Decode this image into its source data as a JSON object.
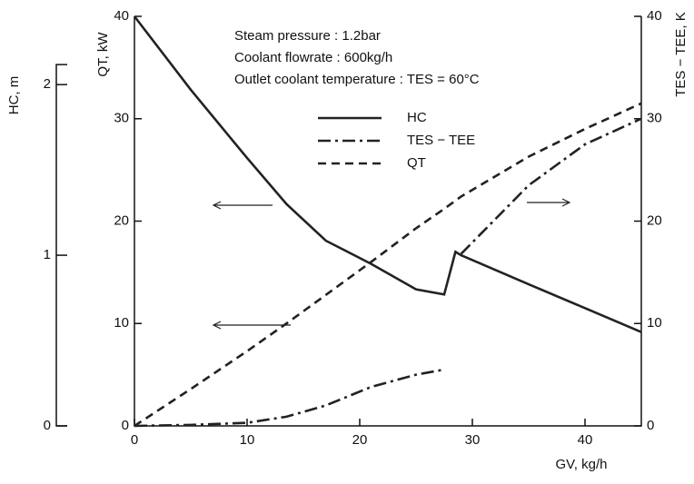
{
  "chart_data": {
    "type": "line",
    "annotations": [
      "Steam pressure : 1.2bar",
      "Coolant flowrate : 600kg/h",
      "Outlet coolant temperature : TES = 60°C"
    ],
    "xlabel": "GV, kg/h",
    "ylabel": "QT, kW",
    "y2label": "TES − TEE, K",
    "y3label": "HC, m",
    "x": [
      0,
      5,
      10,
      13.5,
      17,
      21,
      25,
      27.5,
      28.5,
      29,
      35,
      40,
      45
    ],
    "series": [
      {
        "name": "HC",
        "style": "solid",
        "color": "#222",
        "axis": "y3",
        "values": [
          2.4,
          1.97,
          1.57,
          1.3,
          1.085,
          0.95,
          0.8,
          0.77,
          1.02,
          1.0,
          0.83,
          0.69,
          0.55
        ]
      },
      {
        "name": "TES − TEE",
        "style": "dashdot",
        "color": "#222",
        "axis": "y2",
        "values": [
          0,
          0.1,
          0.3,
          0.9,
          2.0,
          3.8,
          5.0,
          5.5,
          null,
          16.8,
          23.5,
          27.5,
          30
        ]
      },
      {
        "name": "QT",
        "style": "dashed",
        "color": "#222",
        "values": [
          0,
          3.6,
          7.3,
          10.0,
          12.8,
          16.0,
          19.3,
          21.2,
          22.0,
          22.4,
          26.3,
          29.0,
          31.5
        ]
      }
    ],
    "xlim": [
      0,
      45
    ],
    "xticks": [
      0,
      10,
      20,
      30,
      40
    ],
    "ylim": [
      0,
      40
    ],
    "yticks": [
      0,
      10,
      20,
      30,
      40
    ],
    "y2lim": [
      0,
      40
    ],
    "y2ticks": [
      0,
      10,
      20,
      30,
      40
    ],
    "y3lim": [
      0,
      2.4
    ],
    "y3ticks": [
      0,
      1,
      2
    ]
  }
}
